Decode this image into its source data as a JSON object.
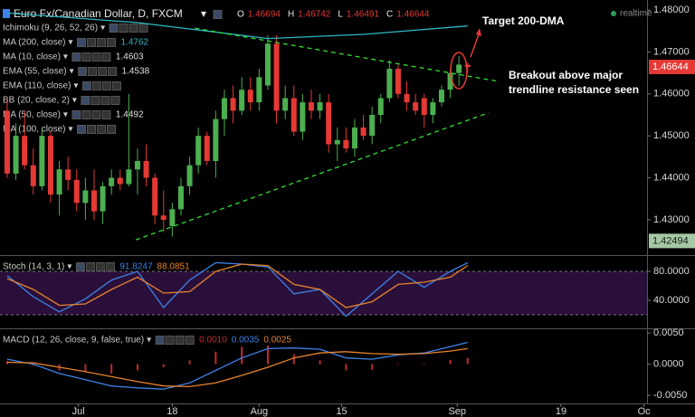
{
  "header": {
    "symbol": "Euro Fx/Canadian Dollar, D, FXCM",
    "ohlc": [
      {
        "key": "O",
        "value": "1.46694"
      },
      {
        "key": "H",
        "value": "1.46742"
      },
      {
        "key": "L",
        "value": "1.46491"
      },
      {
        "key": "C",
        "value": "1.46644"
      }
    ],
    "status": "realtime"
  },
  "indicators": [
    {
      "name": "Ichimoku (9, 26, 52, 26)"
    },
    {
      "name": "MA (200, close)",
      "value": "1.4762",
      "color": "#2fb5c4"
    },
    {
      "name": "MA (10, close)",
      "value": "1.4603",
      "color": "#e0e0e0"
    },
    {
      "name": "EMA (55, close)",
      "value": "1.4538",
      "color": "#e0e0e0"
    },
    {
      "name": "EMA (110, close)"
    },
    {
      "name": "BB (20, close, 2)"
    },
    {
      "name": "MA (50, close)",
      "value": "1.4492",
      "color": "#e0e0e0"
    },
    {
      "name": "MA (100, close)"
    }
  ],
  "annotations": {
    "target": "Target 200-DMA",
    "breakout": [
      "Breakout above major",
      "trendline resistance seen"
    ]
  },
  "chart_data": [
    {
      "type": "candlestick",
      "panel": "price",
      "xlim": [
        -0.83,
        73.65
      ],
      "xticks": [
        {
          "value": 8.2,
          "label": "Jul"
        },
        {
          "value": 19,
          "label": "18"
        },
        {
          "value": 29,
          "label": "Aug"
        },
        {
          "value": 38.5,
          "label": "15"
        },
        {
          "value": 51.8,
          "label": "Sep"
        },
        {
          "value": 63.75,
          "label": "19"
        },
        {
          "value": 73.3,
          "label": "Oc"
        }
      ],
      "ylim": [
        1.422,
        1.4824
      ],
      "yticks": [
        {
          "value": 1.48,
          "label": "1.48000"
        },
        {
          "value": 1.47,
          "label": "1.47000"
        },
        {
          "value": 1.46,
          "label": "1.46000"
        },
        {
          "value": 1.45,
          "label": "1.45000"
        },
        {
          "value": 1.44,
          "label": "1.44000"
        },
        {
          "value": 1.43,
          "label": "1.43000"
        }
      ],
      "up_color": "#4caf50",
      "down_color": "#e53935",
      "candles": [
        {
          "o": 1.456,
          "h": 1.459,
          "l": 1.44,
          "c": 1.441
        },
        {
          "o": 1.441,
          "h": 1.453,
          "l": 1.4395,
          "c": 1.45
        },
        {
          "o": 1.45,
          "h": 1.456,
          "l": 1.442,
          "c": 1.443
        },
        {
          "o": 1.443,
          "h": 1.447,
          "l": 1.436,
          "c": 1.438
        },
        {
          "o": 1.438,
          "h": 1.452,
          "l": 1.437,
          "c": 1.45
        },
        {
          "o": 1.45,
          "h": 1.451,
          "l": 1.434,
          "c": 1.436
        },
        {
          "o": 1.436,
          "h": 1.444,
          "l": 1.431,
          "c": 1.442
        },
        {
          "o": 1.442,
          "h": 1.445,
          "l": 1.437,
          "c": 1.4395
        },
        {
          "o": 1.4395,
          "h": 1.442,
          "l": 1.432,
          "c": 1.434
        },
        {
          "o": 1.434,
          "h": 1.44,
          "l": 1.43,
          "c": 1.437
        },
        {
          "o": 1.437,
          "h": 1.442,
          "l": 1.43,
          "c": 1.432
        },
        {
          "o": 1.432,
          "h": 1.439,
          "l": 1.429,
          "c": 1.438
        },
        {
          "o": 1.438,
          "h": 1.442,
          "l": 1.436,
          "c": 1.44
        },
        {
          "o": 1.44,
          "h": 1.442,
          "l": 1.437,
          "c": 1.4385
        },
        {
          "o": 1.4385,
          "h": 1.46,
          "l": 1.438,
          "c": 1.442
        },
        {
          "o": 1.442,
          "h": 1.447,
          "l": 1.436,
          "c": 1.444
        },
        {
          "o": 1.444,
          "h": 1.448,
          "l": 1.438,
          "c": 1.44
        },
        {
          "o": 1.44,
          "h": 1.441,
          "l": 1.429,
          "c": 1.431
        },
        {
          "o": 1.431,
          "h": 1.437,
          "l": 1.427,
          "c": 1.43
        },
        {
          "o": 1.4285,
          "h": 1.434,
          "l": 1.426,
          "c": 1.4325
        },
        {
          "o": 1.4325,
          "h": 1.44,
          "l": 1.431,
          "c": 1.438
        },
        {
          "o": 1.438,
          "h": 1.445,
          "l": 1.436,
          "c": 1.443
        },
        {
          "o": 1.443,
          "h": 1.452,
          "l": 1.441,
          "c": 1.45
        },
        {
          "o": 1.45,
          "h": 1.451,
          "l": 1.443,
          "c": 1.444
        },
        {
          "o": 1.444,
          "h": 1.456,
          "l": 1.44,
          "c": 1.454
        },
        {
          "o": 1.454,
          "h": 1.461,
          "l": 1.45,
          "c": 1.459
        },
        {
          "o": 1.459,
          "h": 1.462,
          "l": 1.453,
          "c": 1.456
        },
        {
          "o": 1.456,
          "h": 1.464,
          "l": 1.455,
          "c": 1.461
        },
        {
          "o": 1.461,
          "h": 1.464,
          "l": 1.456,
          "c": 1.458
        },
        {
          "o": 1.458,
          "h": 1.466,
          "l": 1.456,
          "c": 1.464
        },
        {
          "o": 1.462,
          "h": 1.474,
          "l": 1.461,
          "c": 1.472
        },
        {
          "o": 1.472,
          "h": 1.474,
          "l": 1.453,
          "c": 1.456
        },
        {
          "o": 1.456,
          "h": 1.462,
          "l": 1.454,
          "c": 1.459
        },
        {
          "o": 1.459,
          "h": 1.462,
          "l": 1.45,
          "c": 1.451
        },
        {
          "o": 1.451,
          "h": 1.46,
          "l": 1.449,
          "c": 1.458
        },
        {
          "o": 1.458,
          "h": 1.461,
          "l": 1.454,
          "c": 1.456
        },
        {
          "o": 1.456,
          "h": 1.46,
          "l": 1.454,
          "c": 1.458
        },
        {
          "o": 1.458,
          "h": 1.46,
          "l": 1.446,
          "c": 1.448
        },
        {
          "o": 1.448,
          "h": 1.452,
          "l": 1.444,
          "c": 1.449
        },
        {
          "o": 1.449,
          "h": 1.452,
          "l": 1.446,
          "c": 1.447
        },
        {
          "o": 1.447,
          "h": 1.454,
          "l": 1.445,
          "c": 1.452
        },
        {
          "o": 1.452,
          "h": 1.455,
          "l": 1.449,
          "c": 1.45
        },
        {
          "o": 1.45,
          "h": 1.457,
          "l": 1.448,
          "c": 1.455
        },
        {
          "o": 1.455,
          "h": 1.46,
          "l": 1.453,
          "c": 1.459
        },
        {
          "o": 1.459,
          "h": 1.468,
          "l": 1.458,
          "c": 1.466
        },
        {
          "o": 1.466,
          "h": 1.467,
          "l": 1.459,
          "c": 1.46
        },
        {
          "o": 1.46,
          "h": 1.463,
          "l": 1.456,
          "c": 1.458
        },
        {
          "o": 1.458,
          "h": 1.46,
          "l": 1.455,
          "c": 1.456
        },
        {
          "o": 1.459,
          "h": 1.46,
          "l": 1.452,
          "c": 1.455
        },
        {
          "o": 1.455,
          "h": 1.459,
          "l": 1.453,
          "c": 1.458
        },
        {
          "o": 1.458,
          "h": 1.462,
          "l": 1.457,
          "c": 1.461
        },
        {
          "o": 1.461,
          "h": 1.466,
          "l": 1.459,
          "c": 1.465
        },
        {
          "o": 1.465,
          "h": 1.469,
          "l": 1.462,
          "c": 1.467
        },
        {
          "o": 1.46694,
          "h": 1.46742,
          "l": 1.46491,
          "c": 1.46644
        }
      ],
      "series": [
        {
          "name": "MA (200, close)",
          "color": "#2fb5c4",
          "x": [
            0,
            15,
            30,
            41,
            53
          ],
          "values": [
            1.4793,
            1.477,
            1.4732,
            1.4742,
            1.4762
          ]
        },
        {
          "color": "#33dd33",
          "dashed": true,
          "x": [
            21.6,
            56.5
          ],
          "values": [
            1.4757,
            1.463
          ]
        },
        {
          "color": "#33dd33",
          "dashed": true,
          "x": [
            14.8,
            55.4
          ],
          "values": [
            1.4252,
            1.4555
          ]
        }
      ],
      "price_markers": [
        {
          "value": 1.46644,
          "label": "1.46644",
          "color": "#e53935",
          "text_color": "#ffffff"
        },
        {
          "value": 1.42494,
          "label": "1.42494",
          "color": "#a5c8a5",
          "text_color": "#1a1a1a"
        }
      ]
    },
    {
      "type": "line",
      "panel": "stoch",
      "title": "Stoch (14, 3, 1)",
      "ylim": [
        2.5,
        100
      ],
      "band": [
        20,
        80
      ],
      "band_color": "#2a0f3a",
      "yticks": [
        {
          "value": 80,
          "label": "80.0000"
        },
        {
          "value": 40,
          "label": "40.0000"
        }
      ],
      "x": [
        0,
        3,
        6,
        9,
        12,
        15,
        18,
        21,
        24,
        27,
        30,
        33,
        36,
        39,
        42,
        45,
        48,
        51,
        53
      ],
      "series": [
        {
          "color": "#3d82e8",
          "values": [
            74,
            45,
            24,
            42,
            68,
            80,
            30,
            68,
            92,
            90,
            86,
            49,
            55,
            18,
            49,
            80,
            58,
            80,
            91.8247
          ],
          "value_label": "91.8247"
        },
        {
          "color": "#e8832a",
          "values": [
            70,
            55,
            33,
            35,
            55,
            72,
            50,
            52,
            80,
            90,
            88,
            62,
            55,
            30,
            38,
            62,
            65,
            72,
            88.0851
          ],
          "value_label": "88.0851"
        }
      ]
    },
    {
      "type": "macd",
      "panel": "macd",
      "title": "MACD (12, 26, close, 9, false, true)",
      "ylim": [
        -0.0063,
        0.0056
      ],
      "yticks": [
        {
          "value": 0.005,
          "label": "0.0050"
        },
        {
          "value": 0,
          "label": "0.0000"
        },
        {
          "value": -0.005,
          "label": "-0.0050"
        }
      ],
      "x": [
        0,
        3,
        6,
        9,
        12,
        15,
        18,
        21,
        24,
        27,
        30,
        33,
        36,
        39,
        42,
        45,
        48,
        51,
        53
      ],
      "histogram": {
        "color": "#c62828",
        "values": [
          0.0005,
          -0.0002,
          -0.001,
          -0.0013,
          -0.0015,
          -0.001,
          -0.0005,
          0.0006,
          0.002,
          0.0028,
          0.003,
          0.0016,
          0.0006,
          -0.001,
          -0.0009,
          -0.0001,
          0.0001,
          0.0007,
          0.001
        ],
        "value_label": "0.0010"
      },
      "series": [
        {
          "color": "#3d82e8",
          "values": [
            0.0008,
            0,
            -0.0015,
            -0.0025,
            -0.0035,
            -0.0038,
            -0.004,
            -0.003,
            -0.001,
            0.001,
            0.0025,
            0.0026,
            0.0024,
            0.001,
            0.0008,
            0.0015,
            0.0018,
            0.0028,
            0.0035
          ],
          "value_label": "0.0035"
        },
        {
          "color": "#e8832a",
          "values": [
            0.0003,
            0.0002,
            -0.0005,
            -0.0012,
            -0.002,
            -0.0028,
            -0.0035,
            -0.0036,
            -0.003,
            -0.0018,
            -0.0005,
            0.001,
            0.0018,
            0.002,
            0.0017,
            0.0016,
            0.0017,
            0.0021,
            0.0025
          ],
          "value_label": "0.0025"
        }
      ]
    }
  ]
}
